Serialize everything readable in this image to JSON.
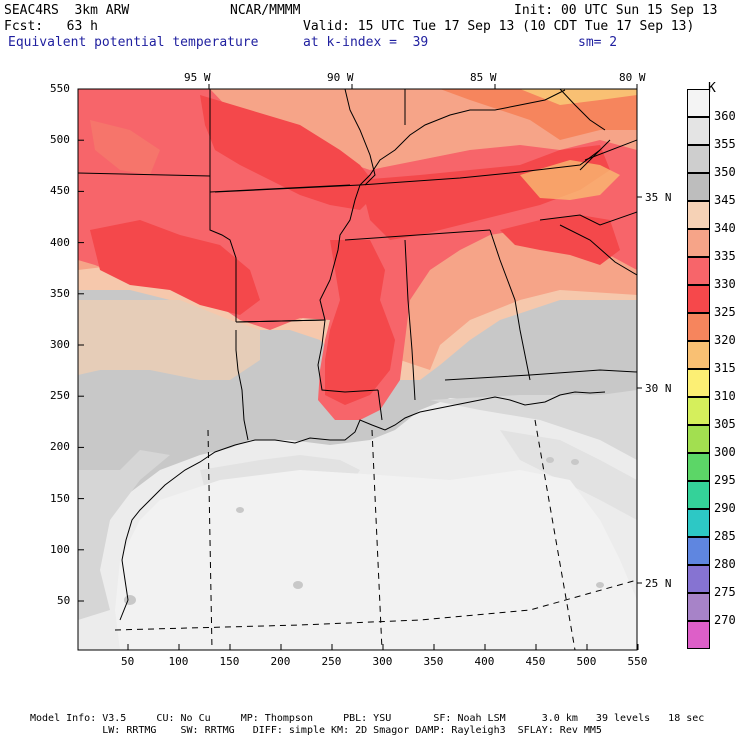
{
  "header": {
    "model": "SEAC4RS  3km ARW",
    "org": "NCAR/MMMM",
    "init": "Init: 00 UTC Sun 15 Sep 13",
    "fcst": "Fcst:   63 h",
    "valid": "Valid: 15 UTC Tue 17 Sep 13 (10 CDT Tue 17 Sep 13)",
    "field": "Equivalent potential temperature",
    "level": "at k-index =  39",
    "smooth": "sm= 2"
  },
  "lon_labels": [
    "95 W",
    "90 W",
    "85 W",
    "80 W"
  ],
  "lat_labels": [
    "35 N",
    "30 N",
    "25 N"
  ],
  "y_ticks": [
    "550",
    "500",
    "450",
    "400",
    "350",
    "300",
    "250",
    "200",
    "150",
    "100",
    "50"
  ],
  "x_ticks": [
    "50",
    "100",
    "150",
    "200",
    "250",
    "300",
    "350",
    "400",
    "450",
    "500",
    "550"
  ],
  "colorbar": {
    "unit": "K",
    "levels": [
      "360",
      "355",
      "350",
      "345",
      "340",
      "335",
      "330",
      "325",
      "320",
      "315",
      "310",
      "305",
      "300",
      "295",
      "290",
      "285",
      "280",
      "275",
      "270"
    ],
    "colors": [
      "#f4f4f4",
      "#e4e4e4",
      "#cecece",
      "#bdbdbd",
      "#f6d2b6",
      "#f6a488",
      "#f7656a",
      "#f6484b",
      "#f6855d",
      "#f9c073",
      "#fcef74",
      "#d5ef5c",
      "#a2df50",
      "#5cd667",
      "#34d299",
      "#2dc8c5",
      "#5f86e0",
      "#8673d2",
      "#a783c8",
      "#dd5fc8"
    ]
  },
  "footer": {
    "line1": "Model Info: V3.5     CU: No Cu     MP: Thompson     PBL: YSU       SF: Noah LSM      3.0 km   39 levels   18 sec",
    "line2": "            LW: RRTMG    SW: RRTMG   DIFF: simple KM: 2D Smagor DAMP: Rayleigh3  SFLAY: Rev MM5"
  }
}
